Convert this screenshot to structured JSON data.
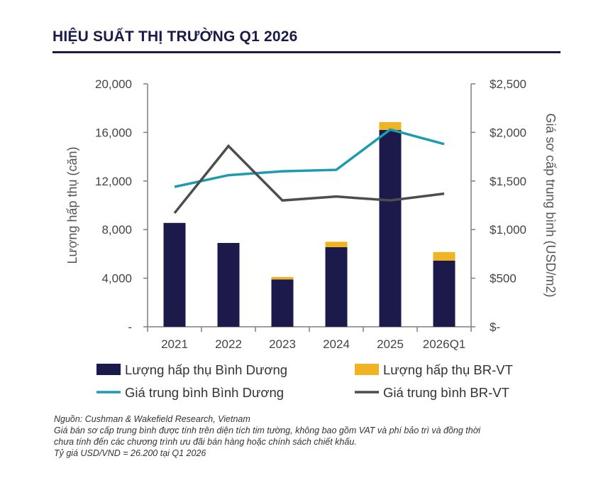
{
  "title": "HIỆU SUẤT THỊ TRƯỜNG Q1 2026",
  "chart_data": {
    "type": "bar",
    "categories": [
      "2021",
      "2022",
      "2023",
      "2024",
      "2025",
      "2026Q1"
    ],
    "series": [
      {
        "name": "Lượng hấp thụ Bình Dương",
        "kind": "bar",
        "axis": "left",
        "color": "#1b1a4a",
        "values": [
          8550,
          6900,
          3900,
          6550,
          16200,
          5450
        ]
      },
      {
        "name": "Lượng hấp thụ BR-VT",
        "kind": "bar-stacked",
        "axis": "left",
        "color": "#f0b323",
        "values": [
          0,
          0,
          200,
          450,
          650,
          700
        ]
      },
      {
        "name": "Giá trung bình Bình Dương",
        "kind": "line",
        "axis": "right",
        "color": "#1e9bb0",
        "values": [
          1440,
          1560,
          1600,
          1615,
          2030,
          1880
        ]
      },
      {
        "name": "Giá trung bình BR-VT",
        "kind": "line",
        "axis": "right",
        "color": "#4d4d4d",
        "values": [
          1170,
          1860,
          1300,
          1340,
          1300,
          1370
        ]
      }
    ],
    "ylabel": "Lượng hấp thụ (căn)",
    "ylabel_right": "Giá sơ cấp trung bình (USD/m2)",
    "ylim": [
      0,
      20000
    ],
    "ylim_right": [
      0,
      2500
    ],
    "yticks": [
      "-",
      "4,000",
      "8,000",
      "12,000",
      "16,000",
      "20,000"
    ],
    "yticks_right": [
      "$-",
      "$500",
      "$1,000",
      "$1,500",
      "$2,000",
      "$2,500"
    ],
    "grid": false,
    "legend_position": "bottom"
  },
  "notes": [
    "Nguồn: Cushman & Wakefield Research, Vietnam",
    "Giá bán sơ cấp trung bình được tính trên diện tích tim tường, không bao gồm VAT và phí bảo trì và đồng thời",
    "chưa tính đến các chương trình ưu đãi bán hàng hoặc chính sách chiết khấu.",
    "Tỷ giá USD/VND = 26.200 tại Q1 2026"
  ]
}
